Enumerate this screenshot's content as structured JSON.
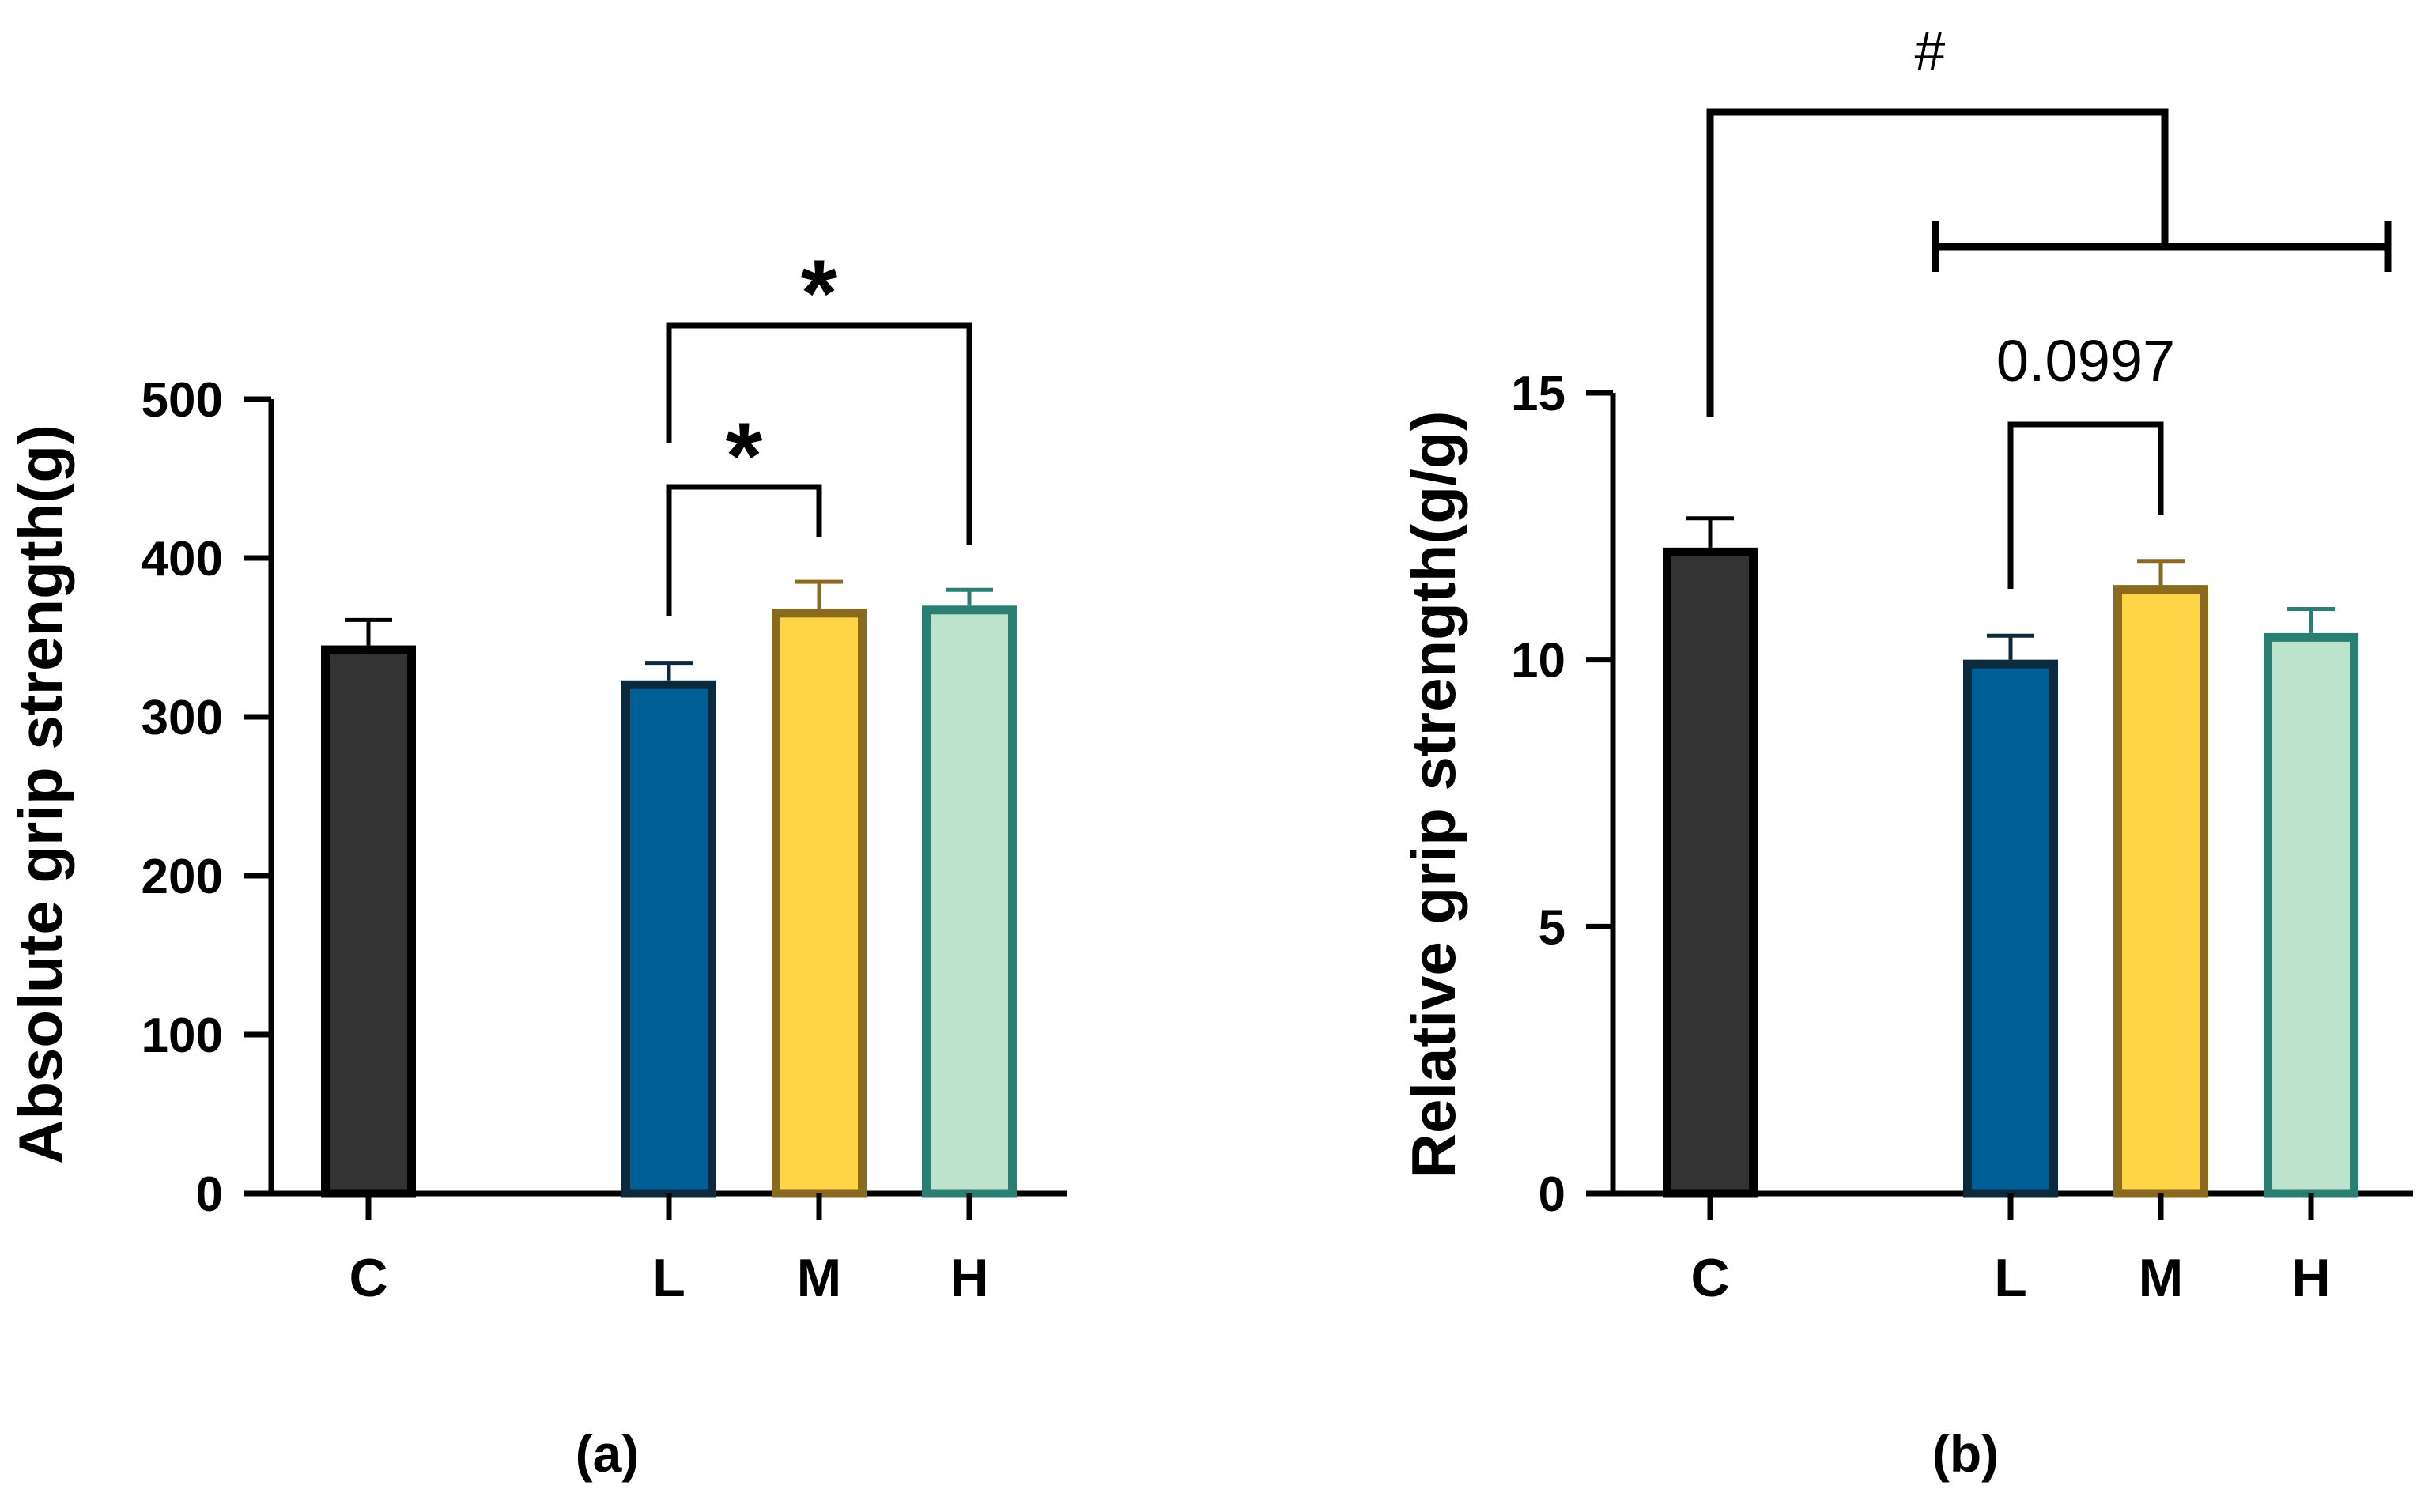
{
  "chart_data": [
    {
      "type": "bar",
      "panel_label": "(a)",
      "ylabel": "Absolute grip strength(g)",
      "xlabel": "",
      "categories": [
        "C",
        "L",
        "M",
        "H"
      ],
      "values": [
        345,
        323,
        368,
        370
      ],
      "errors": [
        16,
        11,
        17,
        10
      ],
      "ylim": [
        0,
        500
      ],
      "yticks": [
        0,
        100,
        200,
        300,
        400,
        500
      ],
      "grid": false,
      "fill_colors": [
        "#333333",
        "#005F96",
        "#FFD447",
        "#BDE3CD"
      ],
      "edge_colors": [
        "#000000",
        "#0C2A3E",
        "#8A6A1F",
        "#2A7F72"
      ],
      "comparisons": [
        {
          "from": "L",
          "to": "M",
          "label": "*"
        },
        {
          "from": "L",
          "to": "H",
          "label": "*"
        }
      ]
    },
    {
      "type": "bar",
      "panel_label": "(b)",
      "ylabel": "Relative grip strength(g/g)",
      "xlabel": "",
      "categories": [
        "C",
        "L",
        "M",
        "H"
      ],
      "values": [
        12.1,
        10.0,
        11.4,
        10.5
      ],
      "errors": [
        0.55,
        0.45,
        0.45,
        0.45
      ],
      "ylim": [
        0,
        15
      ],
      "yticks": [
        0,
        5,
        10,
        15
      ],
      "grid": false,
      "fill_colors": [
        "#333333",
        "#005F96",
        "#FFD447",
        "#BDE3CD"
      ],
      "edge_colors": [
        "#000000",
        "#0C2A3E",
        "#8A6A1F",
        "#2A7F72"
      ],
      "comparisons": [
        {
          "from": "L",
          "to": "M",
          "label": "0.0997"
        },
        {
          "from": "C",
          "to": "L, M, H",
          "label": "#"
        }
      ]
    }
  ]
}
